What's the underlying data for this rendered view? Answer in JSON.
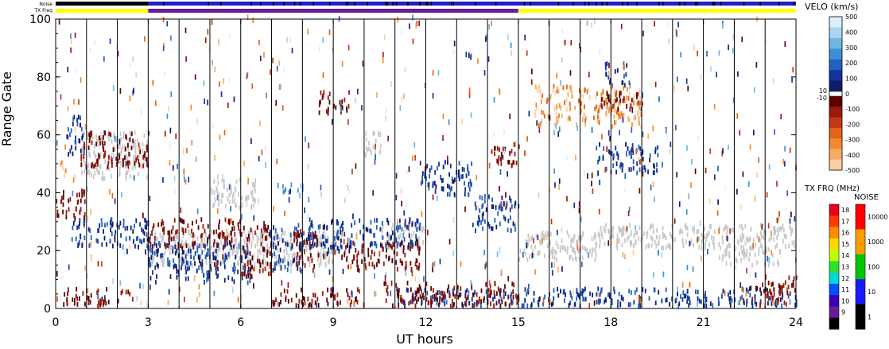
{
  "chart_data": {
    "type": "heatmap",
    "title": "",
    "xlabel": "UT hours",
    "ylabel": "Range Gate",
    "xlim": [
      0,
      24
    ],
    "ylim": [
      0,
      100
    ],
    "x_ticks": [
      0,
      3,
      6,
      9,
      12,
      15,
      18,
      21,
      24
    ],
    "y_ticks": [
      0,
      20,
      40,
      60,
      80,
      100
    ],
    "status_bars": {
      "noise_label": "Noise",
      "txfreq_label": "TX Freq",
      "noise_high_interval": [
        3,
        24
      ],
      "txfreq_segments": [
        {
          "from": 0,
          "to": 3,
          "color": "#ffff00"
        },
        {
          "from": 3,
          "to": 15,
          "color": "#6a1a9a"
        },
        {
          "from": 15,
          "to": 24,
          "color": "#ffff00"
        }
      ]
    },
    "velocity_scale": {
      "title": "VELO (km/s)",
      "ticks": [
        500,
        400,
        300,
        200,
        100,
        0,
        -100,
        -200,
        -300,
        -400,
        -500
      ],
      "low_threshold_labels": [
        "10",
        "-10"
      ],
      "positive_colors": [
        "#dceefa",
        "#a9d6f2",
        "#6fb7e6",
        "#3e8fd6",
        "#2361be",
        "#13329b",
        "#0c1e6b"
      ],
      "negative_colors": [
        "#5c0000",
        "#9a1a0d",
        "#c23a14",
        "#e0641c",
        "#f08a2c",
        "#f6ad66",
        "#f9d0a4"
      ]
    },
    "txfreq_scale": {
      "title": "TX FRQ (MHz)",
      "ticks": [
        18,
        17,
        16,
        15,
        14,
        13,
        12,
        11,
        10,
        9
      ],
      "colors": [
        "#e8001a",
        "#ff3b00",
        "#ff8c00",
        "#ffd800",
        "#bfff00",
        "#30e030",
        "#00d8d8",
        "#0050ff",
        "#3b00b0",
        "#6a1a9a",
        "#000000"
      ]
    },
    "noise_scale": {
      "title": "NOISE",
      "ticks": [
        10000,
        1000,
        100,
        10,
        1
      ],
      "colors": [
        "#ff0000",
        "#ff9c00",
        "#00c800",
        "#1a1aff",
        "#000000"
      ]
    },
    "ground_scatter_color": "#c8c8c8",
    "scan_lines_hours": [
      1,
      2,
      3,
      4,
      5,
      6,
      7,
      8,
      9,
      10,
      11,
      12,
      13,
      14,
      15,
      16,
      17,
      18,
      19,
      20,
      21,
      22,
      23
    ],
    "regions": [
      {
        "kind": "ground",
        "x": [
          0.8,
          3.0
        ],
        "y": [
          44,
          60
        ]
      },
      {
        "kind": "ground",
        "x": [
          3.0,
          9.2
        ],
        "y": [
          14,
          26
        ]
      },
      {
        "kind": "ground",
        "x": [
          5.0,
          6.5
        ],
        "y": [
          34,
          44
        ]
      },
      {
        "kind": "ground",
        "x": [
          10.5,
          12.0
        ],
        "y": [
          20,
          28
        ]
      },
      {
        "kind": "ground",
        "x": [
          15.0,
          17.5
        ],
        "y": [
          16,
          26
        ]
      },
      {
        "kind": "ground",
        "x": [
          17.5,
          24.0
        ],
        "y": [
          20,
          28
        ]
      },
      {
        "kind": "ground",
        "x": [
          21.5,
          23.5
        ],
        "y": [
          14,
          20
        ]
      },
      {
        "kind": "ground",
        "x": [
          10.0,
          10.6
        ],
        "y": [
          52,
          60
        ]
      },
      {
        "kind": "pos",
        "x": [
          0.3,
          0.9
        ],
        "y": [
          52,
          66
        ]
      },
      {
        "kind": "pos",
        "x": [
          0.5,
          3.0
        ],
        "y": [
          20,
          30
        ]
      },
      {
        "kind": "pos",
        "x": [
          3.0,
          6.3
        ],
        "y": [
          8,
          22
        ]
      },
      {
        "kind": "pos",
        "x": [
          6.9,
          8.0
        ],
        "y": [
          12,
          28
        ]
      },
      {
        "kind": "pos",
        "x": [
          8.0,
          11.8
        ],
        "y": [
          20,
          30
        ]
      },
      {
        "kind": "pos",
        "x": [
          11.8,
          13.5
        ],
        "y": [
          38,
          50
        ]
      },
      {
        "kind": "pos",
        "x": [
          13.5,
          15.0
        ],
        "y": [
          26,
          38
        ]
      },
      {
        "kind": "pos",
        "x": [
          8.0,
          9.2
        ],
        "y": [
          18,
          24
        ]
      },
      {
        "kind": "pos",
        "x": [
          11.0,
          24.0
        ],
        "y": [
          0,
          6
        ]
      },
      {
        "kind": "pos",
        "x": [
          17.5,
          19.5
        ],
        "y": [
          46,
          56
        ]
      },
      {
        "kind": "pos",
        "x": [
          17.8,
          18.6
        ],
        "y": [
          76,
          84
        ]
      },
      {
        "kind": "neg",
        "x": [
          0.0,
          1.0
        ],
        "y": [
          30,
          40
        ]
      },
      {
        "kind": "neg",
        "x": [
          0.8,
          3.0
        ],
        "y": [
          48,
          60
        ]
      },
      {
        "kind": "neg",
        "x": [
          3.0,
          6.0
        ],
        "y": [
          20,
          30
        ]
      },
      {
        "kind": "neg",
        "x": [
          6.0,
          7.0
        ],
        "y": [
          10,
          28
        ]
      },
      {
        "kind": "neg",
        "x": [
          7.7,
          8.5
        ],
        "y": [
          12,
          26
        ]
      },
      {
        "kind": "neg",
        "x": [
          9.3,
          11.8
        ],
        "y": [
          12,
          22
        ]
      },
      {
        "kind": "neg",
        "x": [
          8.5,
          9.5
        ],
        "y": [
          66,
          74
        ]
      },
      {
        "kind": "neg",
        "x": [
          7.0,
          10.0
        ],
        "y": [
          0,
          6
        ]
      },
      {
        "kind": "neg",
        "x": [
          10.5,
          15.0
        ],
        "y": [
          0,
          8
        ]
      },
      {
        "kind": "neg",
        "x": [
          0.2,
          2.5
        ],
        "y": [
          0,
          6
        ]
      },
      {
        "kind": "neg",
        "x": [
          14.0,
          15.0
        ],
        "y": [
          48,
          56
        ]
      },
      {
        "kind": "neg",
        "x": [
          22.5,
          24.0
        ],
        "y": [
          0,
          10
        ]
      },
      {
        "kind": "orange",
        "x": [
          15.5,
          19.0
        ],
        "y": [
          62,
          76
        ]
      },
      {
        "kind": "orange",
        "x": [
          0.1,
          0.4
        ],
        "y": [
          44,
          50
        ]
      },
      {
        "kind": "cyan",
        "x": [
          7.3,
          8.0
        ],
        "y": [
          38,
          42
        ]
      },
      {
        "kind": "neg",
        "x": [
          17.5,
          19.0
        ],
        "y": [
          68,
          74
        ]
      }
    ]
  }
}
